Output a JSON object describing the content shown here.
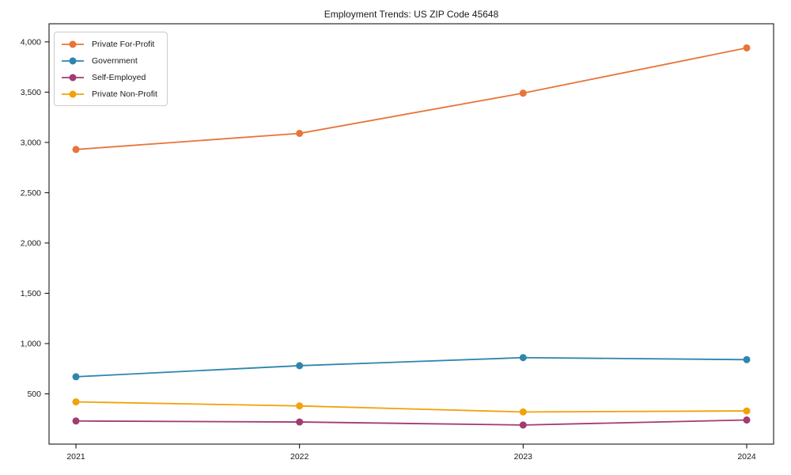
{
  "chart_data": {
    "type": "line",
    "title": "Employment Trends: US ZIP Code 45648",
    "x": [
      2021,
      2022,
      2023,
      2024
    ],
    "xtick_labels": [
      "2021",
      "2022",
      "2023",
      "2024"
    ],
    "series": [
      {
        "name": "Private For-Profit",
        "color": "#E8743B",
        "values": [
          2930,
          3090,
          3490,
          3940
        ]
      },
      {
        "name": "Government",
        "color": "#2E86AB",
        "values": [
          670,
          780,
          860,
          840
        ]
      },
      {
        "name": "Self-Employed",
        "color": "#A23B72",
        "values": [
          230,
          220,
          190,
          240
        ]
      },
      {
        "name": "Private Non-Profit",
        "color": "#F1A208",
        "values": [
          420,
          380,
          320,
          330
        ]
      }
    ],
    "xlabel": "",
    "ylabel": "",
    "ylim": [
      0,
      4180
    ],
    "yticks": [
      500,
      1000,
      1500,
      2000,
      2500,
      3000,
      3500,
      4000
    ],
    "ytick_labels": [
      "500",
      "1,000",
      "1,500",
      "2,000",
      "2,500",
      "3,000",
      "3,500",
      "4,000"
    ],
    "legend_position": "upper-left",
    "grid": false,
    "axis_color": "#000000",
    "tick_label_color": "#1a1a1a",
    "marker": "circle",
    "marker_radius": 4.5,
    "line_width": 1.8
  }
}
